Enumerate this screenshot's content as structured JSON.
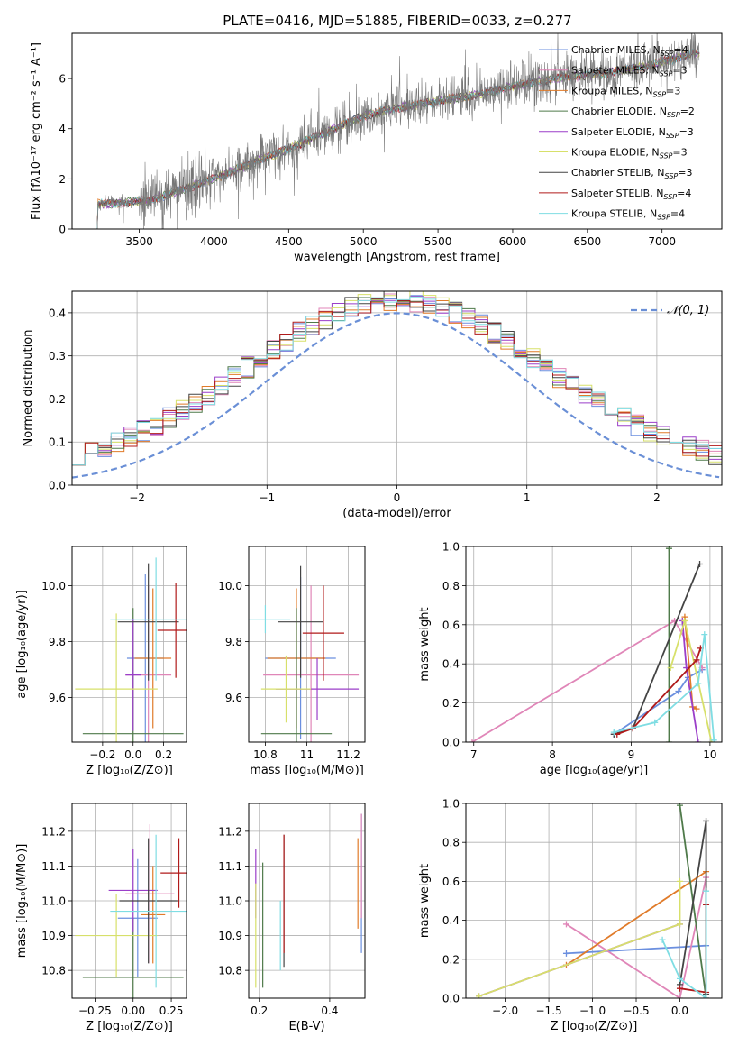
{
  "figure": {
    "title": "PLATE=0416, MJD=51885, FIBERID=0033, z=0.277"
  },
  "colors": {
    "Chabrier MILES": "#6b8fdf",
    "Salpeter MILES": "#e086b8",
    "Kroupa MILES": "#e07b2a",
    "Chabrier ELODIE": "#4f7a4a",
    "Salpeter ELODIE": "#9b3fc9",
    "Kroupa ELODIE": "#d7e06a",
    "Chabrier STELIB": "#444444",
    "Salpeter STELIB": "#b01a1a",
    "Kroupa STELIB": "#7fdde3",
    "data": "#777777",
    "gauss": "#6a8fd6"
  },
  "legend": [
    {
      "model": "Chabrier MILES",
      "prefix": "Chabrier MILES, N",
      "sub": "SSP",
      "suffix": "=4"
    },
    {
      "model": "Salpeter MILES",
      "prefix": "Salpeter MILES, N",
      "sub": "SSP",
      "suffix": "=3"
    },
    {
      "model": "Kroupa MILES",
      "prefix": "Kroupa MILES, N",
      "sub": "SSP",
      "suffix": "=3"
    },
    {
      "model": "Chabrier ELODIE",
      "prefix": "Chabrier ELODIE, N",
      "sub": "SSP",
      "suffix": "=2"
    },
    {
      "model": "Salpeter ELODIE",
      "prefix": "Salpeter ELODIE, N",
      "sub": "SSP",
      "suffix": "=3"
    },
    {
      "model": "Kroupa ELODIE",
      "prefix": "Kroupa ELODIE, N",
      "sub": "SSP",
      "suffix": "=3"
    },
    {
      "model": "Chabrier STELIB",
      "prefix": "Chabrier STELIB, N",
      "sub": "SSP",
      "suffix": "=3"
    },
    {
      "model": "Salpeter STELIB",
      "prefix": "Salpeter STELIB, N",
      "sub": "SSP",
      "suffix": "=4"
    },
    {
      "model": "Kroupa STELIB",
      "prefix": "Kroupa STELIB, N",
      "sub": "SSP",
      "suffix": "=4"
    }
  ],
  "chart_data": [
    {
      "id": "spectrum",
      "type": "line",
      "xlabel": "wavelength [Angstrom, rest frame]",
      "ylabel": "Flux [fλ10⁻¹⁷ erg cm⁻² s⁻¹ A⁻¹]",
      "xlim": [
        3050,
        7400
      ],
      "ylim": [
        0,
        7.8
      ],
      "xticks": [
        3500,
        4000,
        4500,
        5000,
        5500,
        6000,
        6500,
        7000
      ],
      "yticks": [
        0,
        2,
        4,
        6
      ],
      "wavelength_range": [
        3200,
        7250
      ],
      "continuum_knots": {
        "x": [
          3200,
          3400,
          3600,
          3800,
          4000,
          4200,
          4500,
          4800,
          5000,
          5200,
          5500,
          5800,
          6000,
          6300,
          6600,
          6900,
          7200
        ],
        "y": [
          1.0,
          1.05,
          1.2,
          1.6,
          2.0,
          2.5,
          3.2,
          4.0,
          4.5,
          4.8,
          5.1,
          5.4,
          5.7,
          6.0,
          6.2,
          6.5,
          7.0
        ]
      },
      "noise_amplitude": 0.55
    },
    {
      "id": "residuals",
      "type": "step",
      "xlabel": "(data-model)/error",
      "ylabel": "Normed distribution",
      "xlim": [
        -2.5,
        2.5
      ],
      "ylim": [
        0,
        0.45
      ],
      "xticks": [
        -2,
        -1,
        0,
        1,
        2
      ],
      "yticks": [
        0.0,
        0.1,
        0.2,
        0.3,
        0.4
      ],
      "grid": true,
      "bin_width": 0.1,
      "legend_label": "𝒩(0, 1)",
      "legend_position": "top-right"
    },
    {
      "id": "age_vs_Z",
      "type": "errorbar",
      "xlabel": "Z [log₁₀(Z/Z⊙)]",
      "ylabel": "age  [log₁₀(age/yr)]",
      "xlim": [
        -0.4,
        0.35
      ],
      "ylim": [
        9.44,
        10.14
      ],
      "xticks": [
        -0.2,
        0.0,
        0.2
      ],
      "xticklabels": [
        "−0.2",
        "0.0",
        "0.2"
      ],
      "yticks": [
        9.6,
        9.8,
        10.0
      ],
      "grid": true,
      "points": [
        {
          "model": "Chabrier MILES",
          "x": 0.08,
          "xerr": 0.12,
          "y": 9.74,
          "yerr": 0.3
        },
        {
          "model": "Salpeter MILES",
          "x": 0.1,
          "xerr": 0.15,
          "y": 9.68,
          "yerr": 0.32
        },
        {
          "model": "Kroupa MILES",
          "x": 0.13,
          "xerr": 0.12,
          "y": 9.74,
          "yerr": 0.25
        },
        {
          "model": "Chabrier ELODIE",
          "x": 0.0,
          "xerr": 0.33,
          "y": 9.47,
          "yerr": 0.45
        },
        {
          "model": "Salpeter ELODIE",
          "x": 0.0,
          "xerr": 0.05,
          "y": 9.68,
          "yerr": 0.2
        },
        {
          "model": "Kroupa ELODIE",
          "x": -0.11,
          "xerr": 0.27,
          "y": 9.63,
          "yerr": 0.27
        },
        {
          "model": "Chabrier STELIB",
          "x": 0.1,
          "xerr": 0.2,
          "y": 9.87,
          "yerr": 0.21
        },
        {
          "model": "Salpeter STELIB",
          "x": 0.28,
          "xerr": 0.12,
          "y": 9.84,
          "yerr": 0.17
        },
        {
          "model": "Kroupa STELIB",
          "x": 0.15,
          "xerr": 0.3,
          "y": 9.88,
          "yerr": 0.22
        }
      ]
    },
    {
      "id": "age_vs_mass",
      "type": "errorbar",
      "xlabel": "mass [log₁₀(M/M⊙)]",
      "ylabel": "",
      "xlim": [
        10.72,
        11.28
      ],
      "ylim": [
        9.44,
        10.14
      ],
      "xticks": [
        10.8,
        11.0,
        11.2
      ],
      "yticks": [
        9.6,
        9.8,
        10.0
      ],
      "grid": true,
      "points": [
        {
          "model": "Chabrier MILES",
          "x": 10.97,
          "xerr": 0.17,
          "y": 9.74,
          "yerr": 0.29
        },
        {
          "model": "Salpeter MILES",
          "x": 11.02,
          "xerr": 0.23,
          "y": 9.68,
          "yerr": 0.32
        },
        {
          "model": "Kroupa MILES",
          "x": 10.95,
          "xerr": 0.14,
          "y": 9.74,
          "yerr": 0.25
        },
        {
          "model": "Chabrier ELODIE",
          "x": 10.95,
          "xerr": 0.17,
          "y": 9.47,
          "yerr": 0.45
        },
        {
          "model": "Salpeter ELODIE",
          "x": 11.05,
          "xerr": 0.2,
          "y": 9.63,
          "yerr": 0.11
        },
        {
          "model": "Kroupa ELODIE",
          "x": 10.9,
          "xerr": 0.12,
          "y": 9.63,
          "yerr": 0.12
        },
        {
          "model": "Chabrier STELIB",
          "x": 10.97,
          "xerr": 0.11,
          "y": 9.87,
          "yerr": 0.2
        },
        {
          "model": "Salpeter STELIB",
          "x": 11.08,
          "xerr": 0.1,
          "y": 9.83,
          "yerr": 0.17
        },
        {
          "model": "Kroupa STELIB",
          "x": 10.8,
          "xerr": 0.12,
          "y": 9.88,
          "yerr": 0.05
        }
      ]
    },
    {
      "id": "weight_vs_age",
      "type": "line",
      "xlabel": "age  [log₁₀(age/yr)]",
      "ylabel": "mass weight",
      "xlim": [
        6.9,
        10.15
      ],
      "ylim": [
        0,
        1
      ],
      "xticks": [
        7,
        8,
        9,
        10
      ],
      "yticks": [
        0.0,
        0.2,
        0.4,
        0.6,
        0.8,
        1.0
      ],
      "grid": true,
      "series": [
        {
          "model": "Chabrier MILES",
          "x": [
            8.78,
            9.6,
            9.72,
            9.9
          ],
          "y": [
            0.04,
            0.26,
            0.33,
            0.37
          ]
        },
        {
          "model": "Salpeter MILES",
          "x": [
            6.98,
            9.55,
            9.9
          ],
          "y": [
            0.0,
            0.62,
            0.38
          ]
        },
        {
          "model": "Kroupa MILES",
          "x": [
            9.68,
            9.78,
            9.83
          ],
          "y": [
            0.64,
            0.18,
            0.17
          ]
        },
        {
          "model": "Chabrier ELODIE",
          "x": [
            9.48,
            9.48
          ],
          "y": [
            0.0,
            0.99
          ]
        },
        {
          "model": "Salpeter ELODIE",
          "x": [
            9.65,
            9.7,
            9.85
          ],
          "y": [
            0.62,
            0.38,
            0.0
          ]
        },
        {
          "model": "Kroupa ELODIE",
          "x": [
            9.5,
            9.68,
            10.02
          ],
          "y": [
            0.38,
            0.62,
            0.0
          ]
        },
        {
          "model": "Chabrier STELIB",
          "x": [
            8.78,
            9.02,
            9.87
          ],
          "y": [
            0.04,
            0.07,
            0.91
          ]
        },
        {
          "model": "Salpeter STELIB",
          "x": [
            8.82,
            9.02,
            9.83,
            9.88
          ],
          "y": [
            0.04,
            0.07,
            0.42,
            0.48
          ]
        },
        {
          "model": "Kroupa STELIB",
          "x": [
            8.78,
            9.3,
            9.85,
            9.93,
            10.05
          ],
          "y": [
            0.05,
            0.1,
            0.3,
            0.55,
            0.01
          ]
        }
      ]
    },
    {
      "id": "mass_vs_Z",
      "type": "errorbar",
      "xlabel": "Z [log₁₀(Z/Z⊙)]",
      "ylabel": "mass [log₁₀(M/M⊙)]",
      "xlim": [
        -0.4,
        0.35
      ],
      "ylim": [
        10.72,
        11.28
      ],
      "xticks": [
        -0.25,
        0.0,
        0.25
      ],
      "xticklabels": [
        "−0.25",
        "0.00",
        "0.25"
      ],
      "yticks": [
        10.8,
        10.9,
        11.0,
        11.1,
        11.2
      ],
      "grid": true,
      "points": [
        {
          "model": "Chabrier MILES",
          "x": 0.03,
          "xerr": 0.13,
          "y": 10.95,
          "yerr": 0.17
        },
        {
          "model": "Salpeter MILES",
          "x": 0.11,
          "xerr": 0.16,
          "y": 11.02,
          "yerr": 0.2
        },
        {
          "model": "Kroupa MILES",
          "x": 0.13,
          "xerr": 0.08,
          "y": 10.96,
          "yerr": 0.14
        },
        {
          "model": "Chabrier ELODIE",
          "x": 0.0,
          "xerr": 0.33,
          "y": 10.78,
          "yerr": 0.17
        },
        {
          "model": "Salpeter ELODIE",
          "x": 0.0,
          "xerr": 0.16,
          "y": 11.03,
          "yerr": 0.12
        },
        {
          "model": "Kroupa ELODIE",
          "x": -0.11,
          "xerr": 0.27,
          "y": 10.9,
          "yerr": 0.12
        },
        {
          "model": "Chabrier STELIB",
          "x": 0.1,
          "xerr": 0.19,
          "y": 11.0,
          "yerr": 0.18
        },
        {
          "model": "Salpeter STELIB",
          "x": 0.3,
          "xerr": 0.12,
          "y": 11.08,
          "yerr": 0.1
        },
        {
          "model": "Kroupa STELIB",
          "x": 0.15,
          "xerr": 0.3,
          "y": 10.97,
          "yerr": 0.22
        }
      ]
    },
    {
      "id": "mass_vs_EBV",
      "type": "errorbar",
      "xlabel": "E(B-V)",
      "ylabel": "",
      "xlim": [
        0.17,
        0.5
      ],
      "ylim": [
        10.72,
        11.28
      ],
      "xticks": [
        0.2,
        0.4
      ],
      "yticks": [
        10.8,
        10.9,
        11.0,
        11.1,
        11.2
      ],
      "grid": true,
      "points": [
        {
          "model": "Chabrier MILES",
          "x": 0.49,
          "xerr": 0.0,
          "y": 11.05,
          "yerr": 0.2
        },
        {
          "model": "Salpeter MILES",
          "x": 0.49,
          "xerr": 0.0,
          "y": 11.1,
          "yerr": 0.15
        },
        {
          "model": "Kroupa MILES",
          "x": 0.48,
          "xerr": 0.0,
          "y": 11.05,
          "yerr": 0.13
        },
        {
          "model": "Chabrier ELODIE",
          "x": 0.21,
          "xerr": 0.0,
          "y": 10.93,
          "yerr": 0.18
        },
        {
          "model": "Salpeter ELODIE",
          "x": 0.19,
          "xerr": 0.0,
          "y": 11.05,
          "yerr": 0.1
        },
        {
          "model": "Kroupa ELODIE",
          "x": 0.19,
          "xerr": 0.0,
          "y": 10.9,
          "yerr": 0.15
        },
        {
          "model": "Chabrier STELIB",
          "x": 0.27,
          "xerr": 0.0,
          "y": 11.0,
          "yerr": 0.19
        },
        {
          "model": "Salpeter STELIB",
          "x": 0.27,
          "xerr": 0.0,
          "y": 11.02,
          "yerr": 0.17
        },
        {
          "model": "Kroupa STELIB",
          "x": 0.26,
          "xerr": 0.0,
          "y": 10.9,
          "yerr": 0.1
        }
      ]
    },
    {
      "id": "weight_vs_Z",
      "type": "line",
      "xlabel": "Z [log₁₀(Z/Z⊙)]",
      "ylabel": "mass weight",
      "xlim": [
        -2.45,
        0.48
      ],
      "ylim": [
        0,
        1
      ],
      "xticks": [
        -2.0,
        -1.5,
        -1.0,
        -0.5,
        0.0
      ],
      "xticklabels": [
        "−2.0",
        "−1.5",
        "−1.0",
        "−0.5",
        "0.0"
      ],
      "yticks": [
        0.0,
        0.2,
        0.4,
        0.6,
        0.8,
        1.0
      ],
      "grid": true,
      "series": [
        {
          "model": "Chabrier MILES",
          "x": [
            -1.3,
            0.3
          ],
          "y": [
            0.23,
            0.27
          ]
        },
        {
          "model": "Salpeter MILES",
          "x": [
            -1.3,
            0.0,
            0.3
          ],
          "y": [
            0.38,
            0.0,
            0.62
          ]
        },
        {
          "model": "Kroupa MILES",
          "x": [
            -1.3,
            0.3
          ],
          "y": [
            0.17,
            0.65
          ]
        },
        {
          "model": "Chabrier ELODIE",
          "x": [
            0.0,
            0.3
          ],
          "y": [
            0.99,
            0.0
          ]
        },
        {
          "model": "Salpeter ELODIE",
          "x": [
            -2.3,
            0.0
          ],
          "y": [
            0.01,
            0.38
          ]
        },
        {
          "model": "Kroupa ELODIE",
          "x": [
            -2.3,
            0.0,
            0.0
          ],
          "y": [
            0.01,
            0.38,
            0.6
          ]
        },
        {
          "model": "Chabrier STELIB",
          "x": [
            0.0,
            0.3,
            0.3
          ],
          "y": [
            0.07,
            0.91,
            0.02
          ]
        },
        {
          "model": "Salpeter STELIB",
          "x": [
            0.0,
            0.3,
            0.3
          ],
          "y": [
            0.05,
            0.03,
            0.48
          ]
        },
        {
          "model": "Kroupa STELIB",
          "x": [
            -0.2,
            0.0,
            0.3,
            0.3
          ],
          "y": [
            0.3,
            0.1,
            0.0,
            0.55
          ]
        }
      ]
    }
  ]
}
